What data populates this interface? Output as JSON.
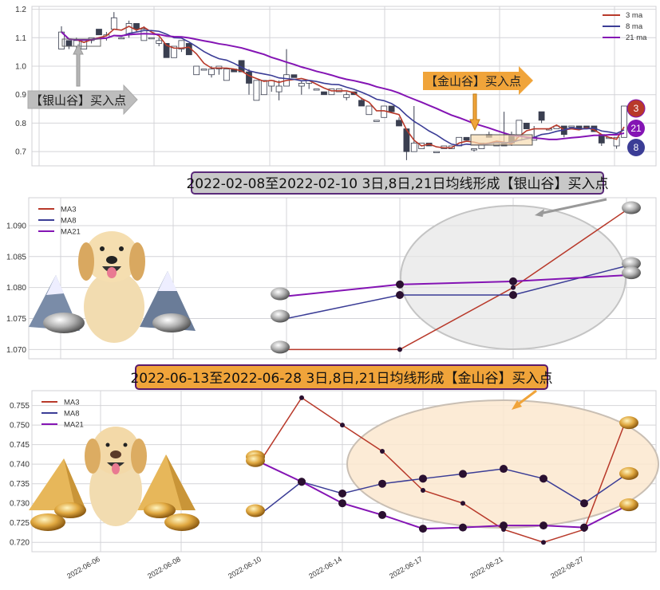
{
  "colors": {
    "ma3": "#b8392a",
    "ma8": "#3b3d96",
    "ma21": "#8414b4",
    "silver": "#bdbdbd",
    "gold": "#f0a43a",
    "grid": "#d4d4d8"
  },
  "chart_data": [
    {
      "type": "candlestick",
      "ylim": [
        0.65,
        1.21
      ],
      "yticks": [
        "1.2",
        "1.1",
        "1.0",
        "0.9",
        "0.8",
        "0.7"
      ],
      "grid": true,
      "legend": {
        "position": "top-right",
        "entries": [
          "3 ma",
          "8 ma",
          "21 ma"
        ]
      },
      "candles_ocHL": [
        [
          1.06,
          1.12,
          1.14,
          1.06
        ],
        [
          1.09,
          1.07,
          1.09,
          1.06
        ],
        [
          1.07,
          1.09,
          1.1,
          1.06
        ],
        [
          1.06,
          1.09,
          1.09,
          1.06
        ],
        [
          1.09,
          1.1,
          1.1,
          1.08
        ],
        [
          1.13,
          1.11,
          1.13,
          1.11
        ],
        [
          1.1,
          1.11,
          1.12,
          1.09
        ],
        [
          1.13,
          1.17,
          1.19,
          1.13
        ],
        [
          1.1,
          1.1,
          1.1,
          1.1
        ],
        [
          1.11,
          1.15,
          1.16,
          1.1
        ],
        [
          1.15,
          1.13,
          1.15,
          1.12
        ],
        [
          1.09,
          1.13,
          1.14,
          1.09
        ],
        [
          1.1,
          1.1,
          1.1,
          1.1
        ],
        [
          1.08,
          1.09,
          1.1,
          1.07
        ],
        [
          1.08,
          1.03,
          1.08,
          1.03
        ],
        [
          1.03,
          1.07,
          1.07,
          1.03
        ],
        [
          1.06,
          1.09,
          1.09,
          1.05
        ],
        [
          1.08,
          1.04,
          1.08,
          1.04
        ],
        [
          0.97,
          1.0,
          1.0,
          0.97
        ],
        [
          0.99,
          0.99,
          0.99,
          0.99
        ],
        [
          0.97,
          0.99,
          1.0,
          0.96
        ],
        [
          0.99,
          1.0,
          1.0,
          0.97
        ],
        [
          0.95,
          0.99,
          0.99,
          0.95
        ],
        [
          0.99,
          0.98,
          0.99,
          0.98
        ],
        [
          1.02,
          0.98,
          1.02,
          0.98
        ],
        [
          0.98,
          0.94,
          0.99,
          0.9
        ],
        [
          0.88,
          0.95,
          0.95,
          0.88
        ],
        [
          0.9,
          0.95,
          0.95,
          0.9
        ],
        [
          0.93,
          0.95,
          0.95,
          0.91
        ],
        [
          0.91,
          0.93,
          0.95,
          0.88
        ],
        [
          0.93,
          0.97,
          1.06,
          0.93
        ],
        [
          0.97,
          0.96,
          0.97,
          0.96
        ],
        [
          0.93,
          0.94,
          0.95,
          0.9
        ],
        [
          0.94,
          0.95,
          0.95,
          0.92
        ],
        [
          0.92,
          0.92,
          0.92,
          0.92
        ],
        [
          0.91,
          0.9,
          0.91,
          0.9
        ],
        [
          0.9,
          0.92,
          0.92,
          0.9
        ],
        [
          0.91,
          0.92,
          0.92,
          0.91
        ],
        [
          0.89,
          0.9,
          0.91,
          0.88
        ],
        [
          0.91,
          0.9,
          0.91,
          0.9
        ],
        [
          0.88,
          0.86,
          0.89,
          0.86
        ],
        [
          0.83,
          0.86,
          0.86,
          0.83
        ],
        [
          0.81,
          0.81,
          0.81,
          0.81
        ],
        [
          0.82,
          0.86,
          0.86,
          0.82
        ],
        [
          0.86,
          0.84,
          0.86,
          0.84
        ],
        [
          0.81,
          0.79,
          0.82,
          0.79
        ],
        [
          0.78,
          0.7,
          0.78,
          0.67
        ],
        [
          0.7,
          0.73,
          0.86,
          0.7
        ],
        [
          0.71,
          0.73,
          0.73,
          0.71
        ],
        [
          0.73,
          0.72,
          0.73,
          0.72
        ],
        [
          0.7,
          0.7,
          0.7,
          0.7
        ],
        [
          0.71,
          0.72,
          0.72,
          0.71
        ],
        [
          0.71,
          0.72,
          0.72,
          0.71
        ],
        [
          0.72,
          0.75,
          0.75,
          0.72
        ],
        [
          0.75,
          0.74,
          0.75,
          0.74
        ],
        [
          0.71,
          0.71,
          0.71,
          0.7
        ],
        [
          0.71,
          0.73,
          0.73,
          0.71
        ],
        [
          0.76,
          0.75,
          0.77,
          0.75
        ],
        [
          0.72,
          0.73,
          0.73,
          0.72
        ],
        [
          0.73,
          0.72,
          0.84,
          0.72
        ],
        [
          0.76,
          0.73,
          0.77,
          0.72
        ],
        [
          0.74,
          0.81,
          0.81,
          0.74
        ],
        [
          0.8,
          0.78,
          0.8,
          0.78
        ],
        [
          0.74,
          0.75,
          0.79,
          0.74
        ],
        [
          0.84,
          0.81,
          0.84,
          0.8
        ],
        [
          0.78,
          0.78,
          0.78,
          0.78
        ],
        [
          0.78,
          0.79,
          0.79,
          0.78
        ],
        [
          0.79,
          0.76,
          0.79,
          0.75
        ],
        [
          0.79,
          0.79,
          0.79,
          0.78
        ],
        [
          0.79,
          0.78,
          0.79,
          0.78
        ],
        [
          0.79,
          0.78,
          0.79,
          0.78
        ],
        [
          0.79,
          0.77,
          0.79,
          0.77
        ],
        [
          0.76,
          0.73,
          0.76,
          0.72
        ],
        [
          0.75,
          0.75,
          0.75,
          0.75
        ],
        [
          0.72,
          0.75,
          0.75,
          0.71
        ],
        [
          0.75,
          0.86,
          0.86,
          0.75
        ]
      ],
      "annotations": {
        "silver": "【银山谷】买入点",
        "gold": "【金山谷】买入点"
      },
      "badges": [
        "3",
        "21",
        "8"
      ]
    },
    {
      "type": "line",
      "title": "2022-02-08至2022-02-10 3日,8日,21日均线形成【银山谷】买入点",
      "ylim": [
        1.0685,
        1.0945
      ],
      "yticks": [
        "1.090",
        "1.085",
        "1.080",
        "1.075",
        "1.070"
      ],
      "grid": true,
      "legend": {
        "position": "top-left"
      },
      "series": [
        {
          "name": "MA3",
          "values": [
            1.07,
            1.07,
            1.08,
            1.0925
          ]
        },
        {
          "name": "MA8",
          "values": [
            1.075,
            1.0788,
            1.0788,
            1.0835
          ]
        },
        {
          "name": "MA21",
          "values": [
            1.0786,
            1.0805,
            1.081,
            1.082
          ]
        }
      ]
    },
    {
      "type": "line",
      "title": "2022-06-13至2022-06-28 3日,8日,21日均线形成【金山谷】买入点",
      "ylim": [
        0.7176,
        0.7588
      ],
      "yticks": [
        "0.755",
        "0.750",
        "0.745",
        "0.740",
        "0.735",
        "0.730",
        "0.725",
        "0.720"
      ],
      "xticks": [
        "2022-06-06",
        "2022-06-08",
        "2022-06-10",
        "2022-06-14",
        "2022-06-17",
        "2022-06-21",
        "2022-06-27"
      ],
      "grid": true,
      "legend": {
        "position": "top-left"
      },
      "series": [
        {
          "name": "MA3",
          "values": [
            0.7413,
            0.757,
            0.75,
            0.7433,
            0.7333,
            0.73,
            0.7233,
            0.72,
            0.7233,
            0.75
          ]
        },
        {
          "name": "MA8",
          "values": [
            0.7275,
            0.7355,
            0.7325,
            0.735,
            0.7363,
            0.7375,
            0.7388,
            0.7363,
            0.73,
            0.737
          ]
        },
        {
          "name": "MA21",
          "values": [
            0.7403,
            0.7355,
            0.73,
            0.727,
            0.7235,
            0.7238,
            0.7243,
            0.7243,
            0.7238,
            0.729
          ]
        }
      ]
    }
  ]
}
